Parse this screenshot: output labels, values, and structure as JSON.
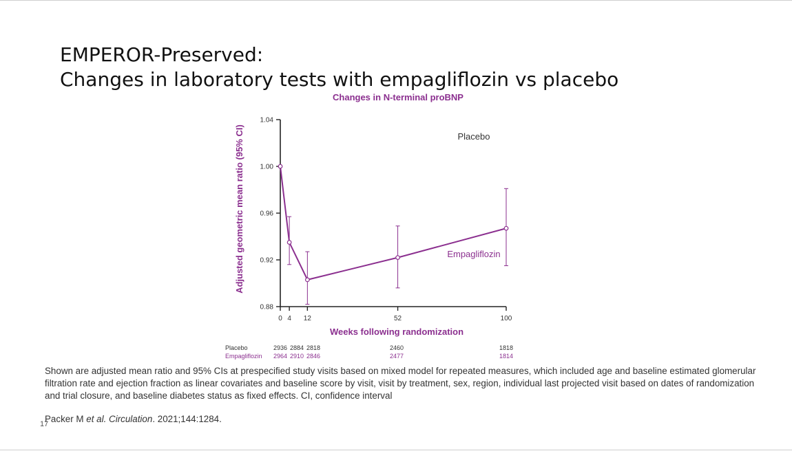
{
  "slide": {
    "title_line1": "EMPEROR-Preserved:",
    "title_line2": "Changes in laboratory tests with empagliflozin vs placebo",
    "footnote": "Shown are adjusted mean ratio and 95% CIs at prespecified study visits based on mixed model for repeated measures, which included age and baseline estimated glomerular filtration rate and ejection fraction as linear covariates and baseline score by visit, visit by treatment, sex, region, individual last projected visit based on dates of randomization and trial closure, and baseline diabetes status as fixed effects. CI, confidence interval",
    "citation_authors": "Packer M ",
    "citation_etal": "et al.",
    "citation_journal": "Circulation",
    "citation_rest": ". 2021;144:1284.",
    "slide_number": "17"
  },
  "colors": {
    "accent": "#8B2F8F",
    "axis": "#222222",
    "text": "#333333"
  },
  "chart_data": {
    "type": "line",
    "title": "Changes in N-terminal proBNP",
    "xlabel": "Weeks following randomization",
    "ylabel": "Adjusted geometric mean ratio (95% CI)",
    "x_ticks": [
      0,
      4,
      12,
      52,
      100
    ],
    "x_tick_labels": [
      "0",
      "4",
      "12",
      "52",
      "100"
    ],
    "y_ticks": [
      0.88,
      0.92,
      0.96,
      1.0,
      1.04
    ],
    "y_tick_labels": [
      "0.88",
      "0.92",
      "0.96",
      "1.00",
      "1.04"
    ],
    "xlim": [
      0,
      100
    ],
    "ylim": [
      0.88,
      1.04
    ],
    "grid": false,
    "reference_label": "Placebo",
    "series": [
      {
        "name": "Empagliflozin",
        "x": [
          0,
          4,
          12,
          52,
          100
        ],
        "y": [
          1.0,
          0.935,
          0.903,
          0.922,
          0.947
        ],
        "ci_low": [
          null,
          0.916,
          0.882,
          0.896,
          0.915
        ],
        "ci_high": [
          null,
          0.957,
          0.927,
          0.949,
          0.981
        ]
      }
    ],
    "at_risk": {
      "x": [
        0,
        4,
        12,
        52,
        100
      ],
      "rows": [
        {
          "label": "Placebo",
          "values": [
            "2936",
            "2884",
            "2818",
            "2460",
            "1818"
          ]
        },
        {
          "label": "Empagliflozin",
          "values": [
            "2964",
            "2910",
            "2846",
            "2477",
            "1814"
          ]
        }
      ]
    }
  }
}
